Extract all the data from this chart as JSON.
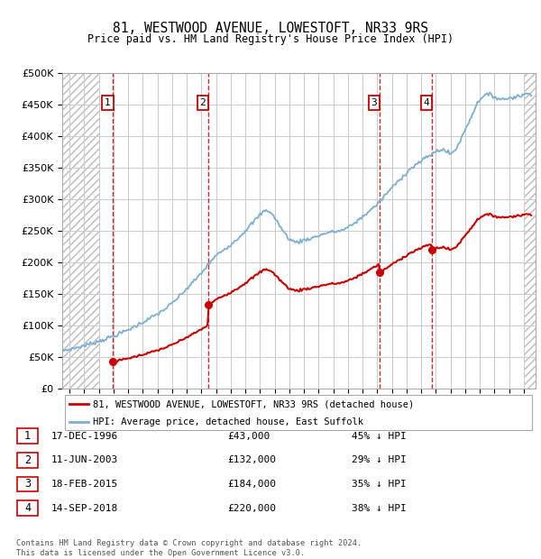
{
  "title": "81, WESTWOOD AVENUE, LOWESTOFT, NR33 9RS",
  "subtitle": "Price paid vs. HM Land Registry's House Price Index (HPI)",
  "sale_dates_num": [
    1996.96,
    2003.44,
    2015.13,
    2018.71
  ],
  "sale_prices": [
    43000,
    132000,
    184000,
    220000
  ],
  "sale_labels": [
    "1",
    "2",
    "3",
    "4"
  ],
  "sale_date_strs": [
    "17-DEC-1996",
    "11-JUN-2003",
    "18-FEB-2015",
    "14-SEP-2018"
  ],
  "sale_price_strs": [
    "£43,000",
    "£132,000",
    "£184,000",
    "£220,000"
  ],
  "sale_hpi_strs": [
    "45% ↓ HPI",
    "29% ↓ HPI",
    "35% ↓ HPI",
    "38% ↓ HPI"
  ],
  "hpi_line_color": "#7bafd4",
  "price_line_color": "#cc0000",
  "vline_color": "#cc0000",
  "grid_color": "#cccccc",
  "legend_label_price": "81, WESTWOOD AVENUE, LOWESTOFT, NR33 9RS (detached house)",
  "legend_label_hpi": "HPI: Average price, detached house, East Suffolk",
  "footer": "Contains HM Land Registry data © Crown copyright and database right 2024.\nThis data is licensed under the Open Government Licence v3.0.",
  "ylim": [
    0,
    500000
  ],
  "yticks": [
    0,
    50000,
    100000,
    150000,
    200000,
    250000,
    300000,
    350000,
    400000,
    450000,
    500000
  ],
  "xlim_start": 1993.5,
  "xlim_end": 2025.8,
  "hpi_knots_x": [
    1993.5,
    1994.0,
    1995.0,
    1996.0,
    1997.0,
    1998.0,
    1999.0,
    2000.0,
    2001.0,
    2002.0,
    2003.0,
    2004.0,
    2005.0,
    2006.0,
    2007.0,
    2007.5,
    2008.0,
    2008.5,
    2009.0,
    2009.5,
    2010.0,
    2010.5,
    2011.0,
    2011.5,
    2012.0,
    2012.5,
    2013.0,
    2013.5,
    2014.0,
    2014.5,
    2015.0,
    2015.5,
    2016.0,
    2016.5,
    2017.0,
    2017.5,
    2018.0,
    2018.5,
    2019.0,
    2019.5,
    2020.0,
    2020.5,
    2021.0,
    2021.5,
    2022.0,
    2022.5,
    2023.0,
    2023.5,
    2024.0,
    2024.5,
    2025.0,
    2025.5
  ],
  "hpi_knots_y": [
    60000,
    62000,
    68000,
    75000,
    83000,
    93000,
    105000,
    118000,
    135000,
    158000,
    183000,
    210000,
    228000,
    250000,
    275000,
    282000,
    270000,
    252000,
    237000,
    232000,
    235000,
    238000,
    242000,
    246000,
    248000,
    250000,
    255000,
    263000,
    272000,
    282000,
    292000,
    305000,
    318000,
    330000,
    342000,
    352000,
    360000,
    368000,
    375000,
    378000,
    372000,
    385000,
    410000,
    435000,
    458000,
    465000,
    462000,
    458000,
    460000,
    462000,
    465000,
    468000
  ]
}
